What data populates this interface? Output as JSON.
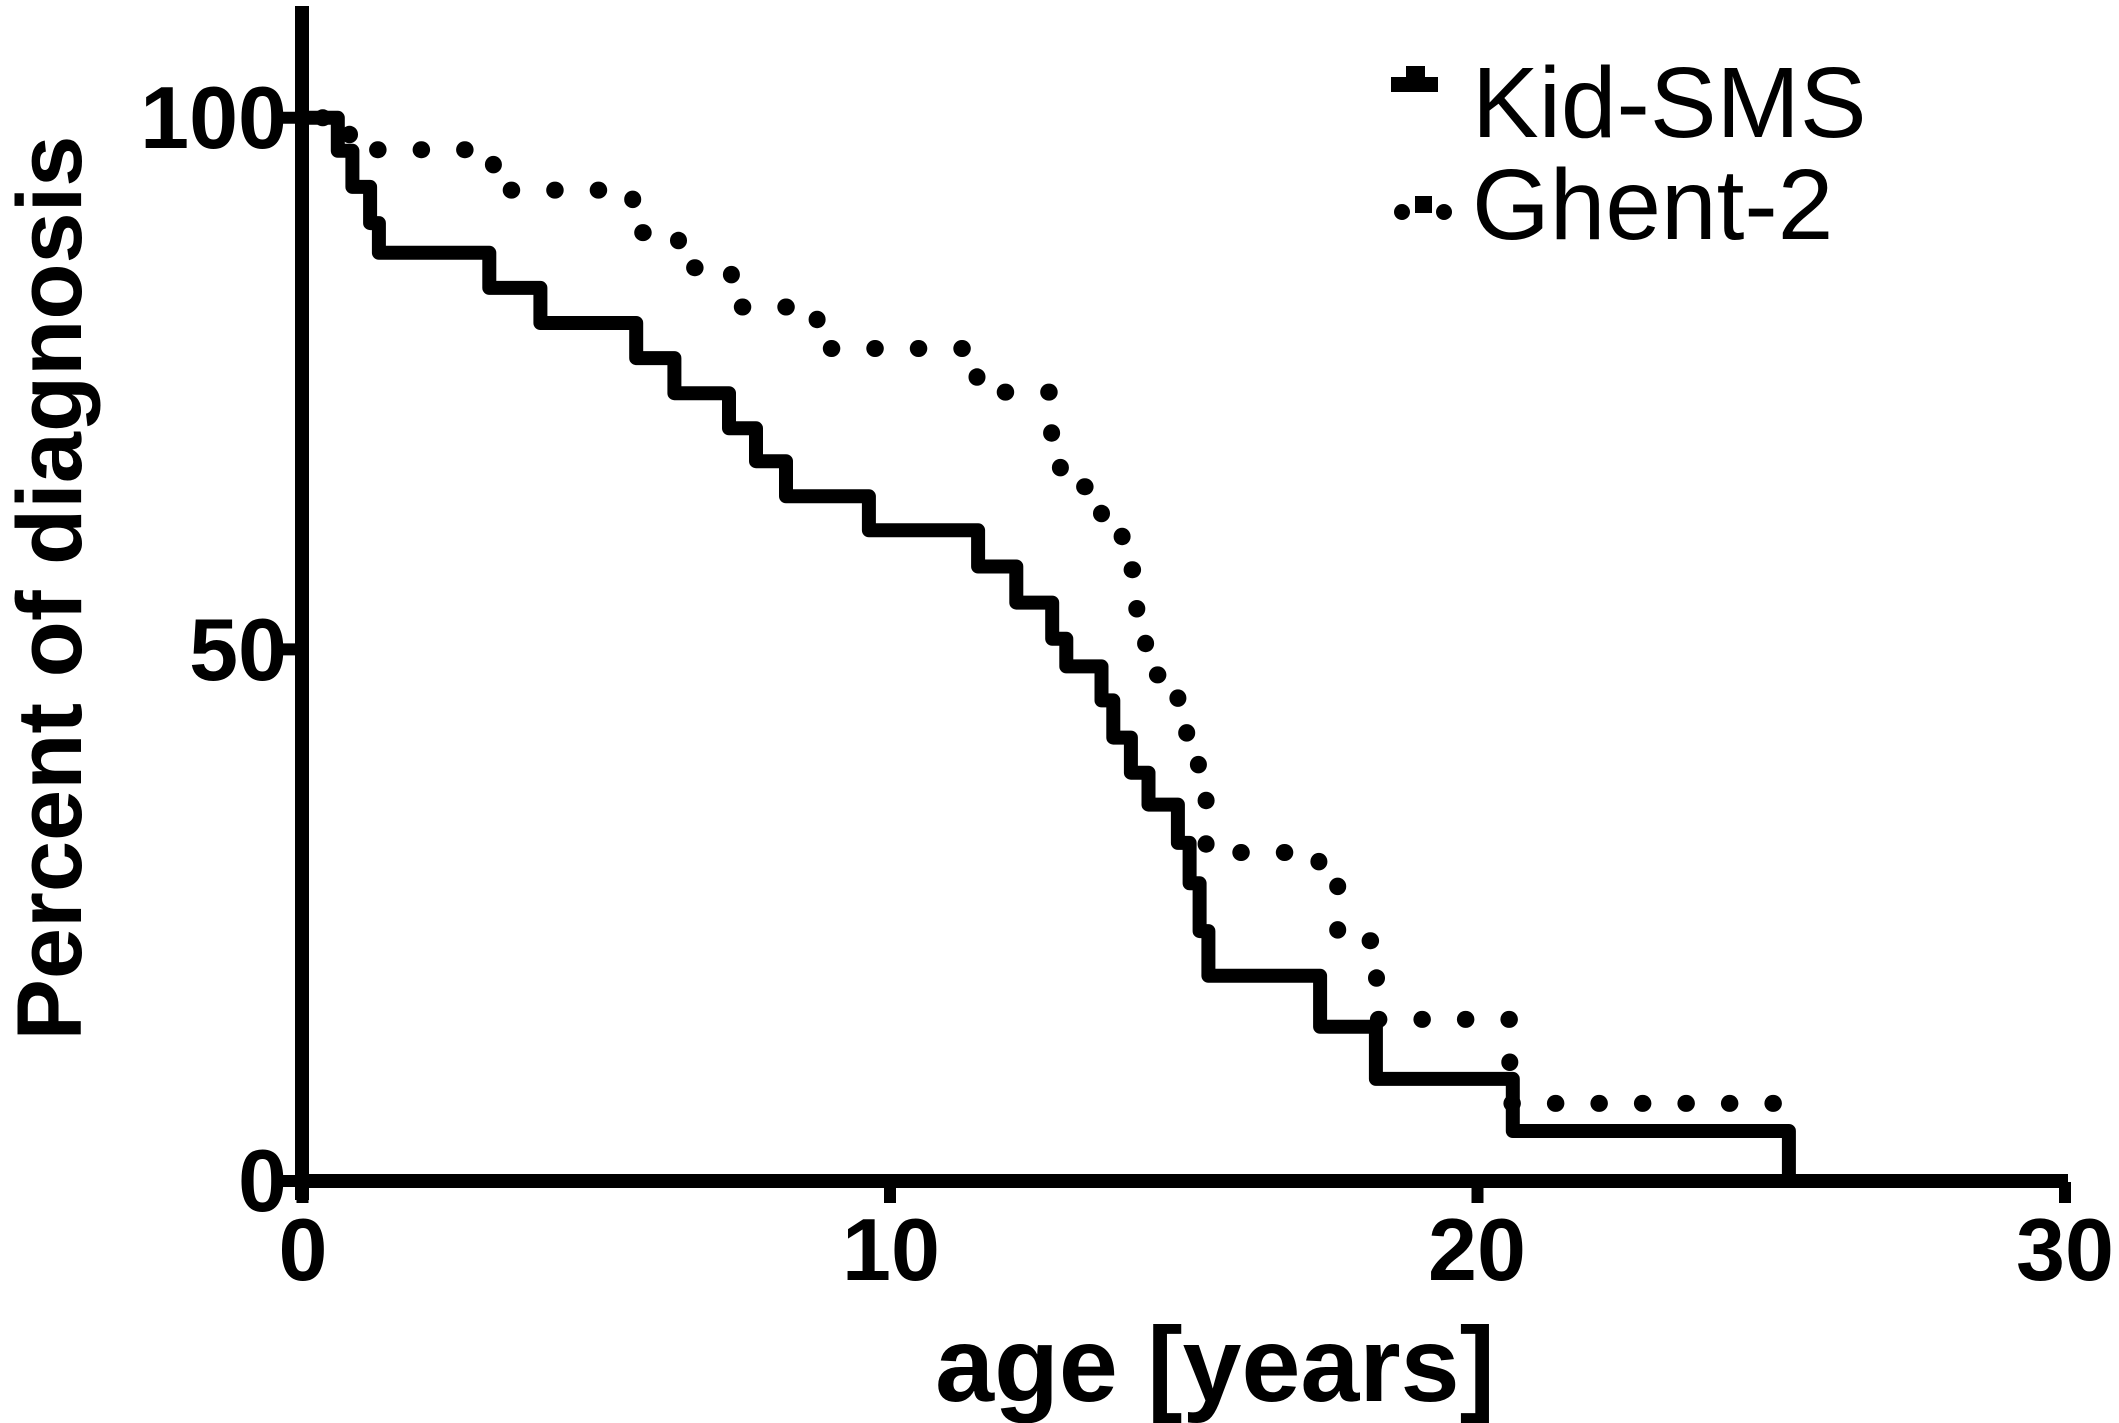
{
  "figure": {
    "background": "#ffffff",
    "ink": "#000000"
  },
  "y_axis": {
    "title": "Percent of diagnosis",
    "tick_labels": [
      "0",
      "50",
      "100"
    ]
  },
  "x_axis": {
    "title": "age [years]",
    "tick_labels": [
      "0",
      "10",
      "20",
      "30"
    ]
  },
  "legend": {
    "items": [
      {
        "label": "Kid-SMS",
        "style": "solid-line-marker"
      },
      {
        "label": "Ghent-2",
        "style": "dotted-line-marker"
      }
    ]
  },
  "chart_data": {
    "type": "line",
    "subtype": "kaplan-meier-step",
    "title": "",
    "xlabel": "age [years]",
    "ylabel": "Percent of diagnosis",
    "xlim": [
      0,
      30
    ],
    "ylim": [
      0,
      100
    ],
    "x_ticks": [
      0,
      10,
      20,
      30
    ],
    "y_ticks": [
      0,
      50,
      100
    ],
    "grid": false,
    "legend_position": "top-right",
    "series": [
      {
        "name": "Kid-SMS",
        "line_style": "solid",
        "color": "#000000",
        "start": 100,
        "steps": [
          [
            0.6,
            96.9
          ],
          [
            0.85,
            93.5
          ],
          [
            1.15,
            90.1
          ],
          [
            1.3,
            87.3
          ],
          [
            3.18,
            84.0
          ],
          [
            4.05,
            80.7
          ],
          [
            5.68,
            77.4
          ],
          [
            6.33,
            74.1
          ],
          [
            7.26,
            70.8
          ],
          [
            7.72,
            67.7
          ],
          [
            8.23,
            64.4
          ],
          [
            9.64,
            61.2
          ],
          [
            11.5,
            57.8
          ],
          [
            12.15,
            54.4
          ],
          [
            12.76,
            51.0
          ],
          [
            13.0,
            48.4
          ],
          [
            13.6,
            45.2
          ],
          [
            13.8,
            41.7
          ],
          [
            14.1,
            38.4
          ],
          [
            14.4,
            35.4
          ],
          [
            14.9,
            31.8
          ],
          [
            15.1,
            28.0
          ],
          [
            15.27,
            23.5
          ],
          [
            15.42,
            19.3
          ],
          [
            17.32,
            14.5
          ],
          [
            18.27,
            9.6
          ],
          [
            20.6,
            4.7
          ],
          [
            25.3,
            0
          ]
        ]
      },
      {
        "name": "Ghent-2",
        "line_style": "dotted",
        "color": "#000000",
        "start": 100,
        "steps": [
          [
            0.8,
            97.0
          ],
          [
            3.25,
            93.2
          ],
          [
            5.62,
            89.2
          ],
          [
            6.4,
            85.9
          ],
          [
            7.3,
            82.2
          ],
          [
            8.76,
            78.3
          ],
          [
            11.48,
            74.2
          ],
          [
            12.75,
            70.2
          ],
          [
            12.9,
            65.3
          ],
          [
            13.6,
            61.5
          ],
          [
            13.95,
            57.5
          ],
          [
            14.2,
            53.0
          ],
          [
            14.35,
            49.8
          ],
          [
            14.55,
            47.6
          ],
          [
            14.9,
            44.3
          ],
          [
            15.05,
            41.2
          ],
          [
            15.25,
            38.5
          ],
          [
            15.38,
            30.9
          ],
          [
            17.3,
            28.8
          ],
          [
            17.62,
            22.6
          ],
          [
            18.28,
            15.2
          ],
          [
            20.55,
            7.3
          ],
          [
            25.2,
            6.3
          ]
        ],
        "tail_age": 25.45
      }
    ]
  }
}
